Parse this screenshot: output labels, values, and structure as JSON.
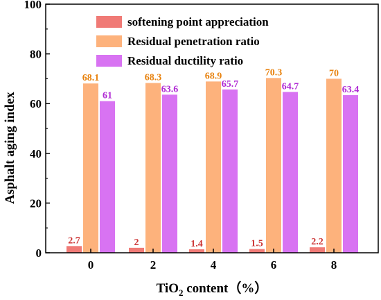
{
  "chart_data": {
    "type": "bar",
    "categories": [
      "0",
      "2",
      "4",
      "6",
      "8"
    ],
    "xlabel_main": "TiO",
    "xlabel_sub": "2",
    "xlabel_rest": " content（%）",
    "ylabel": "Asphalt aging index",
    "ylim": [
      0,
      100
    ],
    "yticks": [
      "0",
      "20",
      "40",
      "60",
      "80",
      "100"
    ],
    "legend_position": "top-right",
    "series": [
      {
        "name": "softening point appreciation",
        "values": [
          2.7,
          2,
          1.4,
          1.5,
          2.2
        ],
        "labels": [
          "2.7",
          "2",
          "1.4",
          "1.5",
          "2.2"
        ],
        "color": "#f07a76",
        "label_color": "#cc3333"
      },
      {
        "name": "Residual penetration ratio",
        "values": [
          68.1,
          68.3,
          68.9,
          70.3,
          70
        ],
        "labels": [
          "68.1",
          "68.3",
          "68.9",
          "70.3",
          "70"
        ],
        "color": "#fdb27c",
        "label_color": "#e8820e"
      },
      {
        "name": "Residual ductility ratio",
        "values": [
          61,
          63.6,
          65.7,
          64.7,
          63.4
        ],
        "labels": [
          "61",
          "63.6",
          "65.7",
          "64.7",
          "63.4"
        ],
        "color": "#d873f2",
        "label_color": "#b02ad4"
      }
    ]
  }
}
